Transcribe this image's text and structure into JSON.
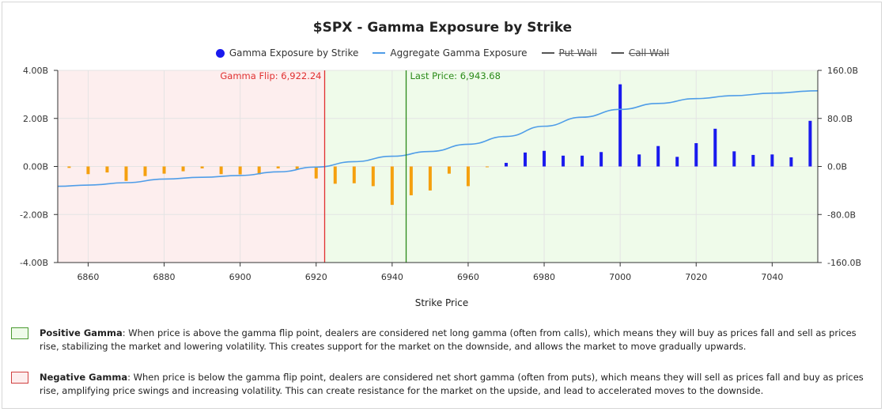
{
  "chart_data": {
    "type": "bar",
    "title": "$SPX - Gamma Exposure by Strike",
    "xlabel": "Strike Price",
    "ylabel": "",
    "xlim": [
      6852,
      7052
    ],
    "ylim_left": [
      -4.0,
      4.0
    ],
    "ylim_right": [
      -160,
      160
    ],
    "x_ticks": [
      6860,
      6880,
      6900,
      6920,
      6940,
      6960,
      6980,
      7000,
      7020,
      7040
    ],
    "y_ticks_left": [
      4.0,
      2.0,
      0.0,
      -2.0,
      -4.0
    ],
    "y_tick_labels_left": [
      "4.00B",
      "2.00B",
      "0.00B",
      "-2.00B",
      "-4.00B"
    ],
    "y_ticks_right": [
      160,
      80,
      0,
      -80,
      -160
    ],
    "y_tick_labels_right": [
      "160.0B",
      "80.0B",
      "0.0B",
      "-80.0B",
      "-160.0B"
    ],
    "legend_position": "top-center",
    "legend": [
      {
        "label": "Gamma Exposure by Strike",
        "marker": "dot",
        "color": "#1a1aee",
        "struck": false
      },
      {
        "label": "Aggregate Gamma Exposure",
        "marker": "line",
        "color": "#4f9de8",
        "struck": false
      },
      {
        "label": "Put Wall",
        "marker": "line",
        "color": "#555555",
        "struck": true
      },
      {
        "label": "Call Wall",
        "marker": "line",
        "color": "#555555",
        "struck": true
      }
    ],
    "series": [
      {
        "name": "Gamma Exposure by Strike",
        "axis": "left",
        "points": [
          {
            "x": 6855,
            "y": -0.06
          },
          {
            "x": 6860,
            "y": -0.32
          },
          {
            "x": 6865,
            "y": -0.25
          },
          {
            "x": 6870,
            "y": -0.6
          },
          {
            "x": 6875,
            "y": -0.4
          },
          {
            "x": 6880,
            "y": -0.3
          },
          {
            "x": 6885,
            "y": -0.2
          },
          {
            "x": 6890,
            "y": -0.08
          },
          {
            "x": 6895,
            "y": -0.32
          },
          {
            "x": 6900,
            "y": -0.33
          },
          {
            "x": 6905,
            "y": -0.33
          },
          {
            "x": 6910,
            "y": -0.08
          },
          {
            "x": 6915,
            "y": -0.12
          },
          {
            "x": 6920,
            "y": -0.5
          },
          {
            "x": 6925,
            "y": -0.72
          },
          {
            "x": 6930,
            "y": -0.7
          },
          {
            "x": 6935,
            "y": -0.82
          },
          {
            "x": 6940,
            "y": -1.6
          },
          {
            "x": 6945,
            "y": -1.2
          },
          {
            "x": 6950,
            "y": -1.0
          },
          {
            "x": 6955,
            "y": -0.3
          },
          {
            "x": 6960,
            "y": -0.82
          },
          {
            "x": 6965,
            "y": -0.02
          },
          {
            "x": 6970,
            "y": 0.15
          },
          {
            "x": 6975,
            "y": 0.58
          },
          {
            "x": 6980,
            "y": 0.65
          },
          {
            "x": 6985,
            "y": 0.45
          },
          {
            "x": 6990,
            "y": 0.45
          },
          {
            "x": 6995,
            "y": 0.6
          },
          {
            "x": 7000,
            "y": 3.42
          },
          {
            "x": 7005,
            "y": 0.5
          },
          {
            "x": 7010,
            "y": 0.85
          },
          {
            "x": 7015,
            "y": 0.4
          },
          {
            "x": 7020,
            "y": 0.97
          },
          {
            "x": 7025,
            "y": 1.57
          },
          {
            "x": 7030,
            "y": 0.63
          },
          {
            "x": 7035,
            "y": 0.48
          },
          {
            "x": 7040,
            "y": 0.5
          },
          {
            "x": 7045,
            "y": 0.38
          },
          {
            "x": 7050,
            "y": 1.9
          }
        ],
        "positive_color": "#1a1aee",
        "negative_color": "#f5a00f"
      },
      {
        "name": "Aggregate Gamma Exposure",
        "axis": "right",
        "color": "#4f9de8",
        "points": [
          {
            "x": 6852,
            "y": -33
          },
          {
            "x": 6860,
            "y": -31
          },
          {
            "x": 6870,
            "y": -27
          },
          {
            "x": 6880,
            "y": -21
          },
          {
            "x": 6890,
            "y": -18
          },
          {
            "x": 6900,
            "y": -15
          },
          {
            "x": 6910,
            "y": -9
          },
          {
            "x": 6920,
            "y": -1
          },
          {
            "x": 6930,
            "y": 8
          },
          {
            "x": 6940,
            "y": 17
          },
          {
            "x": 6950,
            "y": 25
          },
          {
            "x": 6960,
            "y": 37
          },
          {
            "x": 6970,
            "y": 50
          },
          {
            "x": 6980,
            "y": 67
          },
          {
            "x": 6990,
            "y": 82
          },
          {
            "x": 7000,
            "y": 95
          },
          {
            "x": 7010,
            "y": 105
          },
          {
            "x": 7020,
            "y": 113
          },
          {
            "x": 7030,
            "y": 118
          },
          {
            "x": 7040,
            "y": 122
          },
          {
            "x": 7052,
            "y": 126
          }
        ]
      }
    ],
    "regions": [
      {
        "name": "Negative Gamma",
        "x": [
          6852,
          6922.24
        ],
        "color": "#fdeeee"
      },
      {
        "name": "Positive Gamma",
        "x": [
          6922.24,
          7052
        ],
        "color": "#effbea"
      }
    ],
    "reference_lines": [
      {
        "label": "Gamma Flip: 6,922.24",
        "x": 6922.24,
        "color": "#e03030"
      },
      {
        "label": "Last Price: 6,943.68",
        "x": 6943.68,
        "color": "#2a8a18"
      }
    ]
  },
  "notes": [
    {
      "term": "Positive Gamma",
      "text": ": When price is above the gamma flip point, dealers are considered net long gamma (often from calls), which means they will buy as prices fall and sell as prices rise, stabilizing the market and lowering volatility. This creates support for the market on the downside, and allows the market to move gradually upwards.",
      "swatch_fill": "#effbea",
      "swatch_border": "#4a9a30"
    },
    {
      "term": "Negative Gamma",
      "text": ": When price is below the gamma flip point, dealers are considered net short gamma (often from puts), which means they will sell as prices fall and buy as prices rise, amplifying price swings and increasing volatility. This can create resistance for the market on the upside, and lead to accelerated moves to the downside.",
      "swatch_fill": "#fdeeee",
      "swatch_border": "#d04040"
    }
  ]
}
